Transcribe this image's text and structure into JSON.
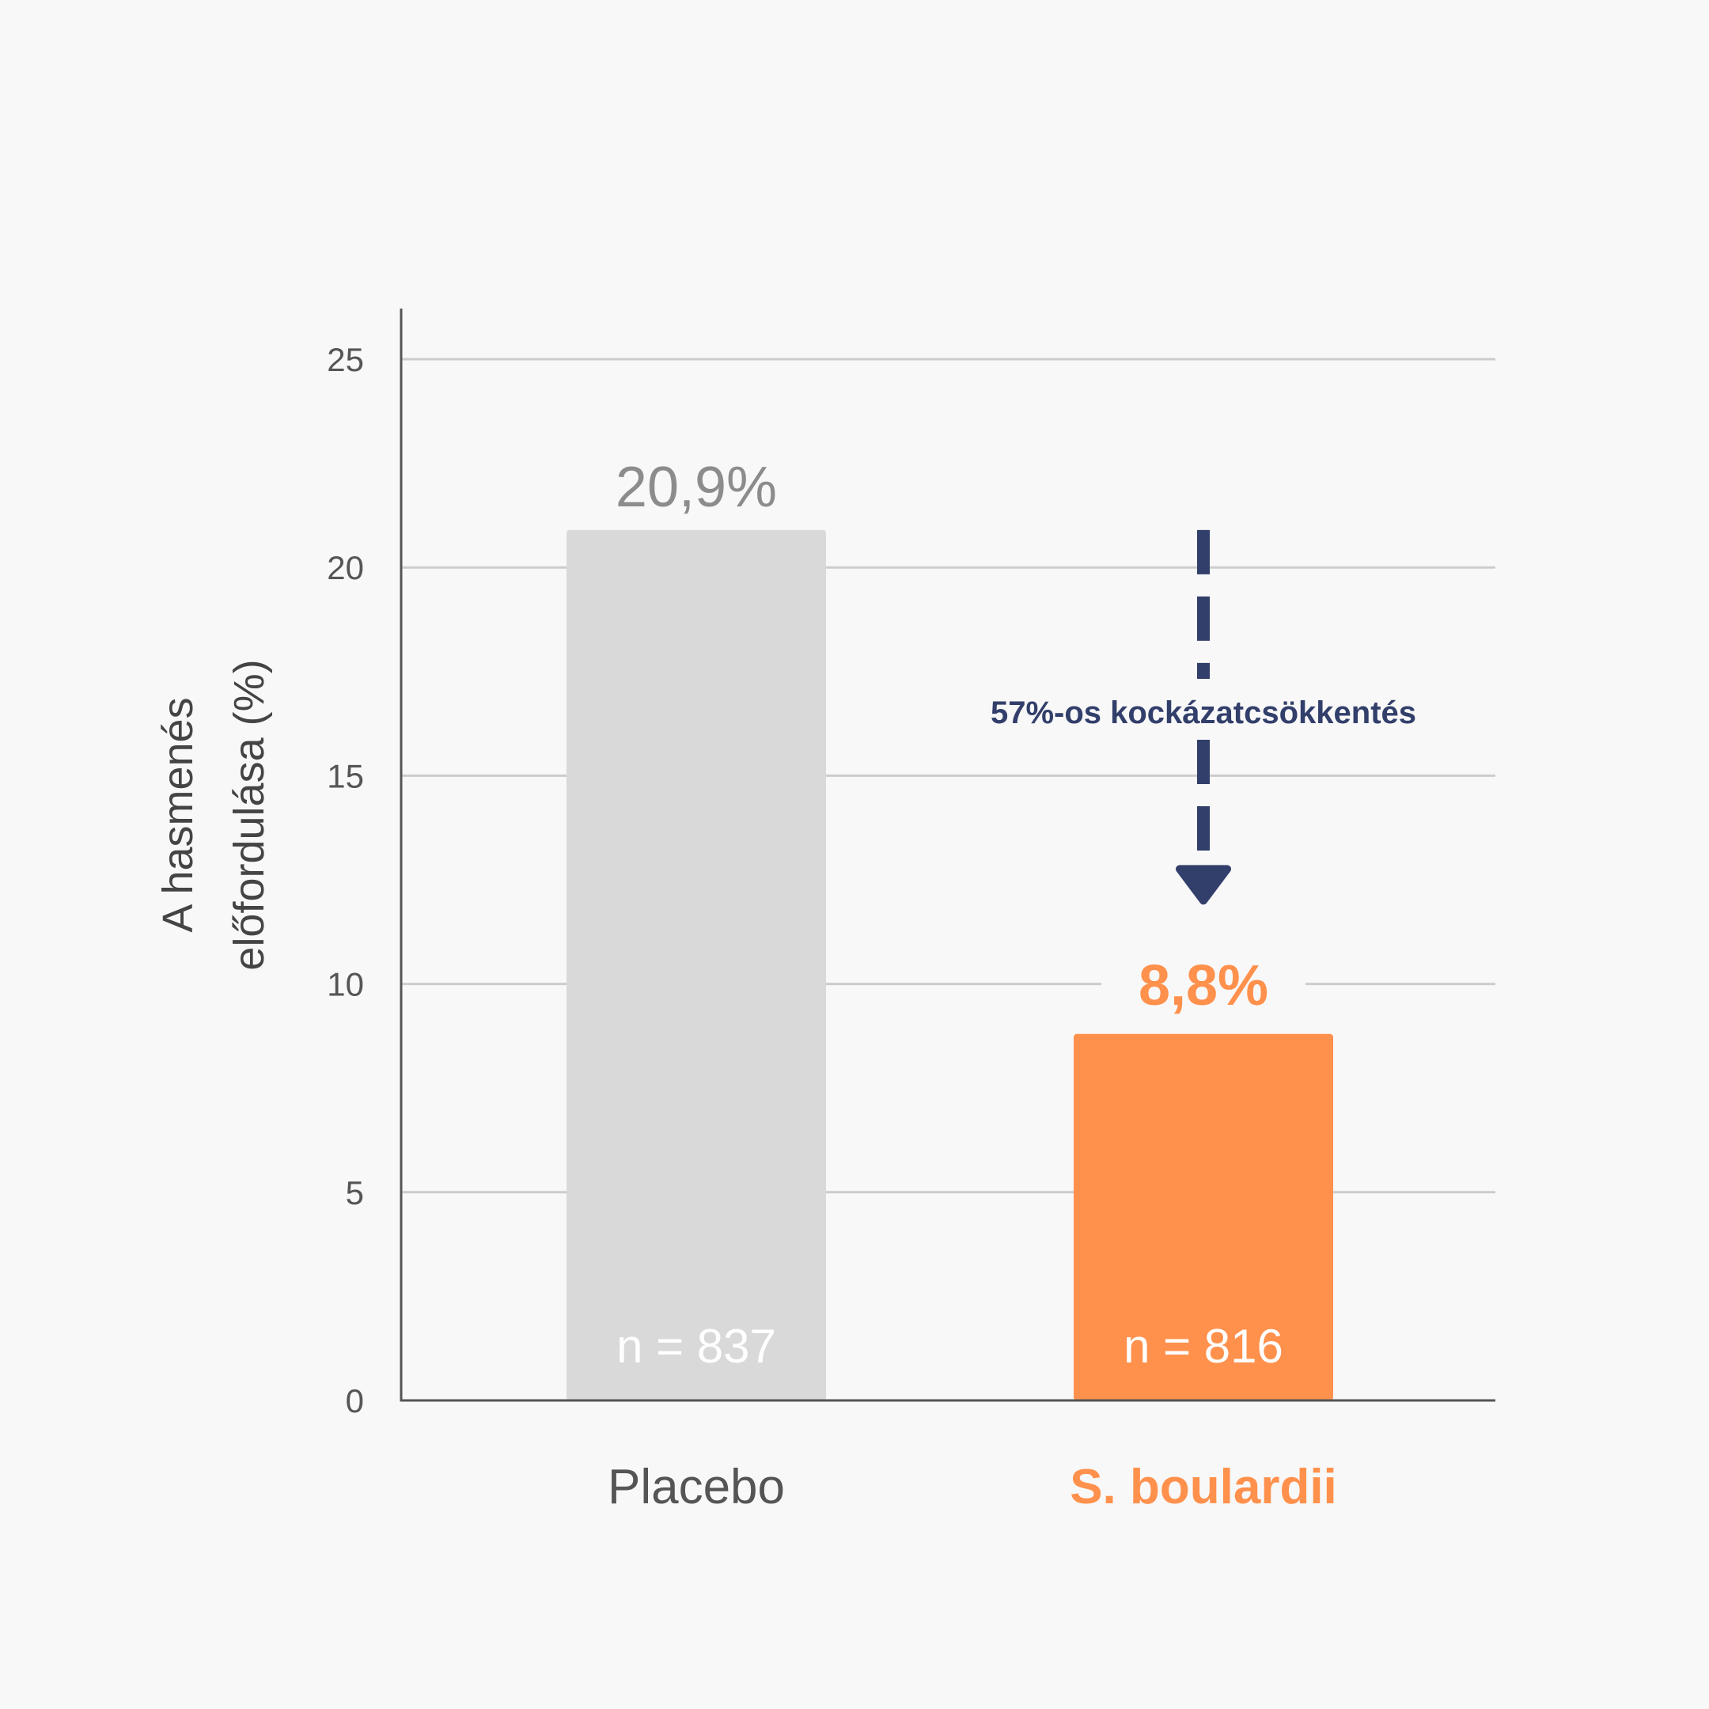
{
  "colors": {
    "background": "#f8f8f8",
    "placebo_bar": "#d9d9d9",
    "placebo_value_text": "#8c8c8c",
    "category_text": "#555555",
    "accent_orange": "#ff914d",
    "arrow_navy": "#323f6b",
    "grid": "#cccccc",
    "axis": "#555555"
  },
  "chart_data": {
    "type": "bar",
    "title": "",
    "ylabel_lines": [
      "A hasmenés",
      "előfordulása (%)"
    ],
    "ylim": [
      0,
      25
    ],
    "yticks": [
      0,
      5,
      10,
      15,
      20,
      25
    ],
    "grid": true,
    "categories": [
      "Placebo",
      "S. boulardii"
    ],
    "values": [
      20.9,
      8.8
    ],
    "value_labels": [
      "20,9%",
      "8,8%"
    ],
    "n_labels": [
      "n = 837",
      "n = 816"
    ],
    "annotation": {
      "text": "57%-os kockázatcsökkentés",
      "from_value": 20.9,
      "to_value": 12,
      "style": "dashed-arrow-down"
    }
  }
}
